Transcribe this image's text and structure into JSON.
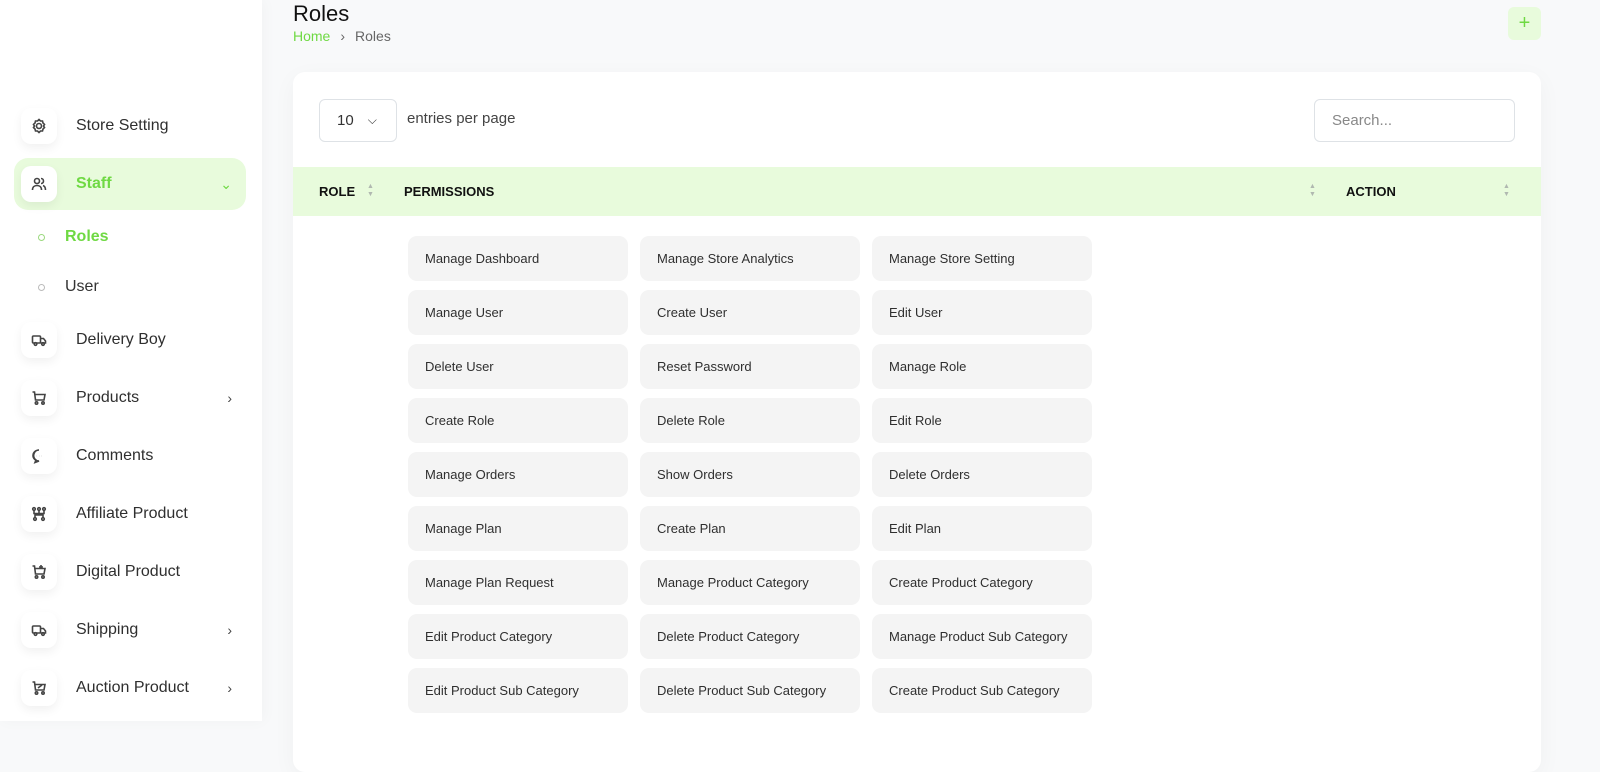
{
  "sidebar": {
    "items": [
      {
        "label": "Store Setting",
        "icon": "gear-icon"
      },
      {
        "label": "Staff",
        "icon": "users-icon",
        "active": true,
        "expanded": true
      },
      {
        "label": "Delivery Boy",
        "icon": "truck-icon"
      },
      {
        "label": "Products",
        "icon": "cart-icon",
        "has_children": true
      },
      {
        "label": "Comments",
        "icon": "message-icon"
      },
      {
        "label": "Affiliate Product",
        "icon": "affiliate-icon"
      },
      {
        "label": "Digital Product",
        "icon": "cart-plus-icon",
        "has_children": false
      },
      {
        "label": "Shipping",
        "icon": "truck-icon",
        "has_children": true
      },
      {
        "label": "Auction Product",
        "icon": "cart-discount-icon",
        "has_children": true
      }
    ],
    "sub_items": [
      {
        "label": "Roles",
        "active": true
      },
      {
        "label": "User"
      }
    ]
  },
  "header": {
    "title": "Roles",
    "breadcrumb": [
      "Home",
      "Roles"
    ],
    "add_button": "+"
  },
  "table": {
    "entries_value": "10",
    "entries_label": "entries per page",
    "search_placeholder": "Search...",
    "columns": [
      "ROLE",
      "PERMISSIONS",
      "ACTION"
    ],
    "permissions": [
      "Manage Dashboard",
      "Manage Store Analytics",
      "Manage Store Setting",
      "Manage User",
      "Create User",
      "Edit User",
      "Delete User",
      "Reset Password",
      "Manage Role",
      "Create Role",
      "Delete Role",
      "Edit Role",
      "Manage Orders",
      "Show Orders",
      "Delete Orders",
      "Manage Plan",
      "Create Plan",
      "Edit Plan",
      "Manage Plan Request",
      "Manage Product Category",
      "Create Product Category",
      "Edit Product Category",
      "Delete Product Category",
      "Manage Product Sub Category",
      "Edit Product Sub Category",
      "Delete Product Sub Category",
      "Create Product Sub Category"
    ]
  },
  "colors": {
    "accent": "#6fd943",
    "accent_bg": "#e8fbdc"
  }
}
